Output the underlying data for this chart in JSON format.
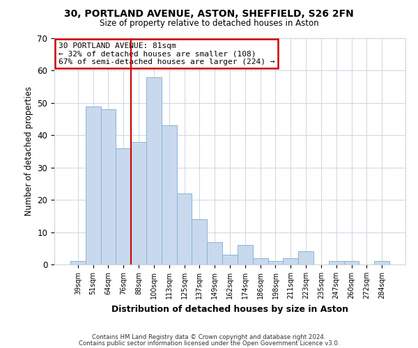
{
  "title": "30, PORTLAND AVENUE, ASTON, SHEFFIELD, S26 2FN",
  "subtitle": "Size of property relative to detached houses in Aston",
  "xlabel": "Distribution of detached houses by size in Aston",
  "ylabel": "Number of detached properties",
  "bar_labels": [
    "39sqm",
    "51sqm",
    "64sqm",
    "76sqm",
    "88sqm",
    "100sqm",
    "113sqm",
    "125sqm",
    "137sqm",
    "149sqm",
    "162sqm",
    "174sqm",
    "186sqm",
    "198sqm",
    "211sqm",
    "223sqm",
    "235sqm",
    "247sqm",
    "260sqm",
    "272sqm",
    "284sqm"
  ],
  "bar_values": [
    1,
    49,
    48,
    36,
    38,
    58,
    43,
    22,
    14,
    7,
    3,
    6,
    2,
    1,
    2,
    4,
    0,
    1,
    1,
    0,
    1
  ],
  "bar_color": "#c8d9ed",
  "bar_edge_color": "#8ab4d4",
  "ylim": [
    0,
    70
  ],
  "yticks": [
    0,
    10,
    20,
    30,
    40,
    50,
    60,
    70
  ],
  "red_line_x": 3.5,
  "annotation_title": "30 PORTLAND AVENUE: 81sqm",
  "annotation_line1": "← 32% of detached houses are smaller (108)",
  "annotation_line2": "67% of semi-detached houses are larger (224) →",
  "annotation_box_color": "#ffffff",
  "annotation_box_edge": "#cc0000",
  "footer1": "Contains HM Land Registry data © Crown copyright and database right 2024.",
  "footer2": "Contains public sector information licensed under the Open Government Licence v3.0.",
  "background_color": "#ffffff",
  "grid_color": "#c8d0dc"
}
